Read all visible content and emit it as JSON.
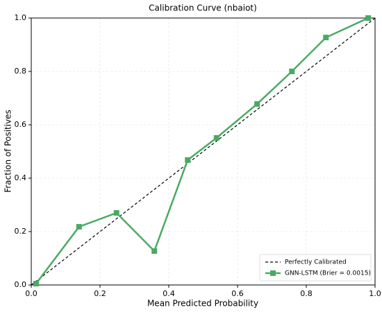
{
  "chart_data": {
    "type": "line",
    "title": "Calibration Curve (nbaiot)",
    "xlabel": "Mean Predicted Probability",
    "ylabel": "Fraction of Positives",
    "xlim": [
      0,
      1
    ],
    "ylim": [
      0,
      1
    ],
    "xticks": [
      {
        "value": 0,
        "label": "0.0"
      },
      0.2,
      0.4,
      0.6,
      0.8,
      {
        "value": 1,
        "label": "1.0"
      }
    ],
    "yticks": [
      {
        "value": 0,
        "label": "0.0"
      },
      0.2,
      0.4,
      0.6,
      0.8,
      {
        "value": 1,
        "label": "1.0"
      }
    ],
    "grid": true,
    "legend": "lower right",
    "series": [
      {
        "name": "Perfectly Calibrated",
        "color": "#000000",
        "dash": true,
        "marker": "none",
        "x": [
          0,
          1
        ],
        "values": [
          0,
          1
        ]
      },
      {
        "name": "GNN-LSTM (Brier = 0.0015)",
        "color": "#4aaa64",
        "dash": false,
        "marker": "square",
        "x": [
          0.014,
          0.139,
          0.248,
          0.358,
          0.455,
          0.539,
          0.657,
          0.758,
          0.857,
          0.98
        ],
        "values": [
          0.005,
          0.218,
          0.27,
          0.127,
          0.468,
          0.551,
          0.678,
          0.8,
          0.927,
          1.0
        ]
      }
    ]
  }
}
